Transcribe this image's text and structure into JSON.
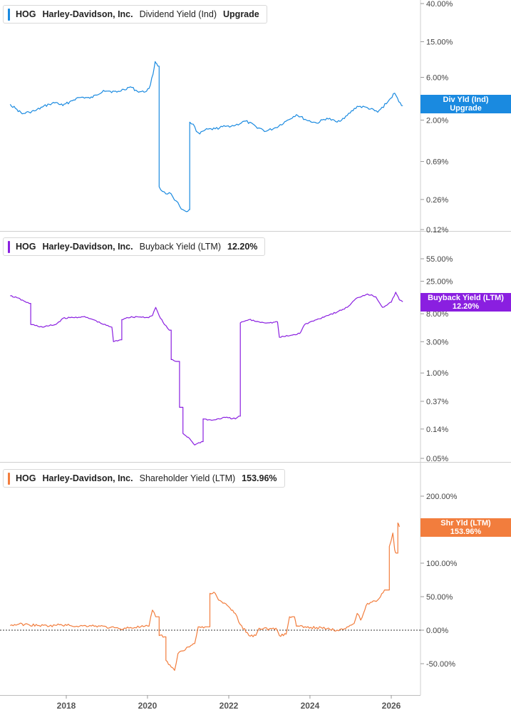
{
  "chart_data": [
    {
      "type": "line",
      "ticker": "HOG",
      "company": "Harley-Davidson, Inc.",
      "metric": "Dividend Yield (Ind)",
      "current_value": "Upgrade",
      "scale": "log",
      "ylim": [
        0.12,
        40
      ],
      "y_ticks": [
        {
          "value": 40,
          "label": "40.00%"
        },
        {
          "value": 15,
          "label": "15.00%"
        },
        {
          "value": 6,
          "label": "6.00%"
        },
        {
          "value": 2,
          "label": "2.00%"
        },
        {
          "value": 0.69,
          "label": "0.69%"
        },
        {
          "value": 0.26,
          "label": "0.26%"
        },
        {
          "value": 0.12,
          "label": "0.12%"
        }
      ],
      "tag_line1": "Div Yld (Ind)",
      "tag_line2": "Upgrade",
      "color": "#1a8ae0",
      "points": [
        [
          "2016-08-15",
          3.0
        ],
        [
          "2016-10-01",
          2.7
        ],
        [
          "2016-12-01",
          2.35
        ],
        [
          "2017-02-01",
          2.45
        ],
        [
          "2017-04-01",
          2.55
        ],
        [
          "2017-06-01",
          2.8
        ],
        [
          "2017-08-01",
          3.0
        ],
        [
          "2017-10-01",
          3.15
        ],
        [
          "2017-12-01",
          2.9
        ],
        [
          "2018-02-01",
          3.2
        ],
        [
          "2018-04-01",
          3.5
        ],
        [
          "2018-06-01",
          3.6
        ],
        [
          "2018-08-01",
          3.5
        ],
        [
          "2018-10-01",
          3.8
        ],
        [
          "2018-12-01",
          4.3
        ],
        [
          "2019-02-01",
          4.2
        ],
        [
          "2019-04-01",
          4.1
        ],
        [
          "2019-06-01",
          4.4
        ],
        [
          "2019-08-01",
          4.7
        ],
        [
          "2019-10-01",
          4.2
        ],
        [
          "2019-12-01",
          4.1
        ],
        [
          "2020-01-15",
          4.5
        ],
        [
          "2020-02-20",
          6.5
        ],
        [
          "2020-03-10",
          9.0
        ],
        [
          "2020-03-25",
          8.5
        ],
        [
          "2020-04-05",
          8.0
        ],
        [
          "2020-04-15",
          0.36
        ],
        [
          "2020-05-15",
          0.32
        ],
        [
          "2020-06-15",
          0.3
        ],
        [
          "2020-07-15",
          0.31
        ],
        [
          "2020-08-15",
          0.28
        ],
        [
          "2020-09-15",
          0.25
        ],
        [
          "2020-10-15",
          0.22
        ],
        [
          "2020-11-15",
          0.2
        ],
        [
          "2020-12-15",
          0.19
        ],
        [
          "2021-01-10",
          0.2
        ],
        [
          "2021-01-15",
          1.9
        ],
        [
          "2021-02-15",
          1.8
        ],
        [
          "2021-03-15",
          1.5
        ],
        [
          "2021-04-15",
          1.4
        ],
        [
          "2021-06-01",
          1.55
        ],
        [
          "2021-09-01",
          1.6
        ],
        [
          "2021-12-01",
          1.7
        ],
        [
          "2022-03-01",
          1.75
        ],
        [
          "2022-06-01",
          1.95
        ],
        [
          "2022-09-01",
          1.7
        ],
        [
          "2022-12-01",
          1.5
        ],
        [
          "2023-03-01",
          1.65
        ],
        [
          "2023-06-01",
          1.95
        ],
        [
          "2023-09-01",
          2.3
        ],
        [
          "2023-12-01",
          2.0
        ],
        [
          "2024-03-01",
          1.85
        ],
        [
          "2024-06-01",
          2.1
        ],
        [
          "2024-09-01",
          1.9
        ],
        [
          "2024-12-01",
          2.25
        ],
        [
          "2025-03-01",
          2.85
        ],
        [
          "2025-06-01",
          2.75
        ],
        [
          "2025-09-01",
          2.45
        ],
        [
          "2025-12-01",
          3.2
        ],
        [
          "2026-02-01",
          4.0
        ],
        [
          "2026-03-10",
          3.2
        ],
        [
          "2026-04-15",
          2.9
        ]
      ]
    },
    {
      "type": "line",
      "ticker": "HOG",
      "company": "Harley-Davidson, Inc.",
      "metric": "Buyback Yield (LTM)",
      "current_value": "12.20%",
      "scale": "log",
      "ylim": [
        0.05,
        55
      ],
      "y_ticks": [
        {
          "value": 55,
          "label": "55.00%"
        },
        {
          "value": 25,
          "label": "25.00%"
        },
        {
          "value": 8,
          "label": "8.00%"
        },
        {
          "value": 3,
          "label": "3.00%"
        },
        {
          "value": 1,
          "label": "1.00%"
        },
        {
          "value": 0.37,
          "label": "0.37%"
        },
        {
          "value": 0.14,
          "label": "0.14%"
        },
        {
          "value": 0.05,
          "label": "0.05%"
        }
      ],
      "tag_line1": "Buyback Yield (LTM)",
      "tag_line2": "12.20%",
      "color": "#8a1fe0",
      "points": [
        [
          "2016-08-15",
          15.0
        ],
        [
          "2016-10-15",
          14.0
        ],
        [
          "2016-12-15",
          12.5
        ],
        [
          "2017-02-01",
          11.5
        ],
        [
          "2017-02-15",
          5.5
        ],
        [
          "2017-06-01",
          5.0
        ],
        [
          "2017-10-01",
          5.5
        ],
        [
          "2017-12-01",
          6.8
        ],
        [
          "2018-03-01",
          7.0
        ],
        [
          "2018-06-01",
          7.2
        ],
        [
          "2018-09-01",
          6.5
        ],
        [
          "2018-12-01",
          5.5
        ],
        [
          "2019-02-15",
          5.0
        ],
        [
          "2019-03-01",
          3.0
        ],
        [
          "2019-05-01",
          3.2
        ],
        [
          "2019-05-15",
          6.5
        ],
        [
          "2019-07-01",
          7.0
        ],
        [
          "2019-10-01",
          7.2
        ],
        [
          "2020-01-01",
          7.0
        ],
        [
          "2020-02-15",
          7.5
        ],
        [
          "2020-03-15",
          10.0
        ],
        [
          "2020-04-15",
          7.5
        ],
        [
          "2020-06-01",
          5.5
        ],
        [
          "2020-07-15",
          4.5
        ],
        [
          "2020-08-01",
          1.6
        ],
        [
          "2020-09-15",
          1.5
        ],
        [
          "2020-10-15",
          0.3
        ],
        [
          "2020-11-15",
          0.12
        ],
        [
          "2021-01-15",
          0.1
        ],
        [
          "2021-03-01",
          0.08
        ],
        [
          "2021-05-01",
          0.09
        ],
        [
          "2021-05-15",
          0.2
        ],
        [
          "2021-08-01",
          0.19
        ],
        [
          "2021-12-01",
          0.21
        ],
        [
          "2022-03-01",
          0.2
        ],
        [
          "2022-04-01",
          0.22
        ],
        [
          "2022-04-15",
          5.8
        ],
        [
          "2022-07-01",
          6.5
        ],
        [
          "2022-10-01",
          6.0
        ],
        [
          "2023-01-01",
          5.8
        ],
        [
          "2023-03-15",
          6.0
        ],
        [
          "2023-04-01",
          3.5
        ],
        [
          "2023-07-01",
          3.7
        ],
        [
          "2023-10-01",
          4.0
        ],
        [
          "2023-11-15",
          5.5
        ],
        [
          "2024-03-01",
          6.5
        ],
        [
          "2024-06-01",
          7.5
        ],
        [
          "2024-09-01",
          8.5
        ],
        [
          "2024-12-01",
          10.0
        ],
        [
          "2025-03-01",
          14.0
        ],
        [
          "2025-06-01",
          16.0
        ],
        [
          "2025-08-15",
          14.5
        ],
        [
          "2025-10-15",
          10.0
        ],
        [
          "2026-01-01",
          12.0
        ],
        [
          "2026-02-10",
          17.0
        ],
        [
          "2026-03-15",
          13.0
        ],
        [
          "2026-04-15",
          12.2
        ]
      ]
    },
    {
      "type": "line",
      "ticker": "HOG",
      "company": "Harley-Davidson, Inc.",
      "metric": "Shareholder Yield (LTM)",
      "current_value": "153.96%",
      "scale": "linear",
      "ylim": [
        -93,
        220
      ],
      "y_ticks": [
        {
          "value": 200,
          "label": "200.00%"
        },
        {
          "value": 150,
          "label": "150.00%"
        },
        {
          "value": 100,
          "label": "100.00%"
        },
        {
          "value": 50,
          "label": "50.00%"
        },
        {
          "value": 0,
          "label": "0.00%"
        },
        {
          "value": -50,
          "label": "-50.00%"
        }
      ],
      "zero_line": true,
      "tag_line1": "Shr Yld (LTM)",
      "tag_line2": "153.96%",
      "color": "#f27d3d",
      "points": [
        [
          "2016-08-15",
          7
        ],
        [
          "2016-11-01",
          9
        ],
        [
          "2017-02-01",
          8
        ],
        [
          "2017-05-01",
          7
        ],
        [
          "2017-08-01",
          6
        ],
        [
          "2017-11-01",
          8
        ],
        [
          "2018-02-01",
          7
        ],
        [
          "2018-05-01",
          6
        ],
        [
          "2018-08-01",
          7
        ],
        [
          "2018-11-01",
          6
        ],
        [
          "2019-02-01",
          4
        ],
        [
          "2019-05-01",
          2
        ],
        [
          "2019-08-01",
          4
        ],
        [
          "2019-11-01",
          5
        ],
        [
          "2020-01-15",
          6
        ],
        [
          "2020-02-15",
          30
        ],
        [
          "2020-03-15",
          20
        ],
        [
          "2020-04-15",
          -8
        ],
        [
          "2020-06-01",
          -10
        ],
        [
          "2020-06-15",
          -45
        ],
        [
          "2020-08-01",
          -55
        ],
        [
          "2020-09-01",
          -60
        ],
        [
          "2020-10-01",
          -35
        ],
        [
          "2021-01-01",
          -25
        ],
        [
          "2021-03-01",
          -20
        ],
        [
          "2021-04-01",
          5
        ],
        [
          "2021-06-01",
          5
        ],
        [
          "2021-07-15",
          55
        ],
        [
          "2021-09-01",
          55
        ],
        [
          "2021-10-01",
          45
        ],
        [
          "2022-01-01",
          35
        ],
        [
          "2022-03-01",
          25
        ],
        [
          "2022-04-01",
          12
        ],
        [
          "2022-07-01",
          -8
        ],
        [
          "2022-09-01",
          -8
        ],
        [
          "2022-10-01",
          3
        ],
        [
          "2023-01-01",
          2
        ],
        [
          "2023-03-01",
          3
        ],
        [
          "2023-04-01",
          -8
        ],
        [
          "2023-06-01",
          -6
        ],
        [
          "2023-07-01",
          20
        ],
        [
          "2023-08-15",
          20
        ],
        [
          "2023-09-01",
          6
        ],
        [
          "2023-12-01",
          4
        ],
        [
          "2024-03-01",
          4
        ],
        [
          "2024-06-01",
          2
        ],
        [
          "2024-09-01",
          0
        ],
        [
          "2024-12-01",
          5
        ],
        [
          "2025-02-01",
          10
        ],
        [
          "2025-03-01",
          25
        ],
        [
          "2025-04-01",
          15
        ],
        [
          "2025-06-01",
          40
        ],
        [
          "2025-09-01",
          45
        ],
        [
          "2025-11-01",
          60
        ],
        [
          "2025-12-15",
          125
        ],
        [
          "2026-01-15",
          145
        ],
        [
          "2026-02-01",
          120
        ],
        [
          "2026-02-15",
          115
        ],
        [
          "2026-03-01",
          160
        ],
        [
          "2026-03-15",
          154
        ]
      ]
    }
  ],
  "x_axis": {
    "ticks": [
      {
        "date": "2018-01-01",
        "label": "2018"
      },
      {
        "date": "2020-01-01",
        "label": "2020"
      },
      {
        "date": "2022-01-01",
        "label": "2022"
      },
      {
        "date": "2024-01-01",
        "label": "2024"
      },
      {
        "date": "2026-01-01",
        "label": "2026"
      }
    ]
  }
}
